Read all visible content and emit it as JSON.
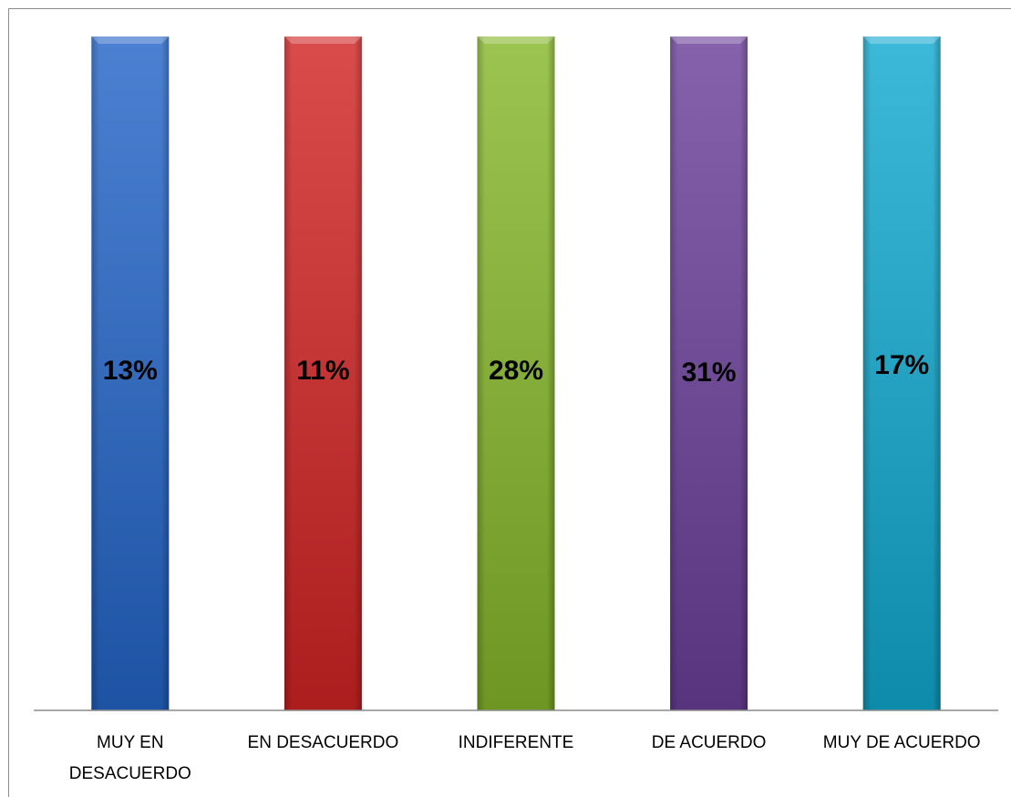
{
  "chart_data": {
    "type": "bar",
    "title": "",
    "xlabel": "",
    "ylabel": "",
    "categories": [
      "MUY EN DESACUERDO",
      "EN DESACUERDO",
      "INDIFERENTE",
      "DE ACUERDO",
      "MUY DE ACUERDO"
    ],
    "category_lines": [
      [
        "MUY EN",
        "DESACUERDO"
      ],
      [
        "EN DESACUERDO"
      ],
      [
        "INDIFERENTE"
      ],
      [
        "DE ACUERDO"
      ],
      [
        "MUY DE ACUERDO"
      ]
    ],
    "values": [
      13,
      11,
      28,
      31,
      17
    ],
    "value_labels": [
      "13%",
      "11%",
      "28%",
      "31%",
      "17%"
    ],
    "bar_heights_note": "all bars drawn to full height",
    "colors": [
      "#3a6fc0",
      "#c8393a",
      "#8ab23e",
      "#74509a",
      "#2aa6c6"
    ],
    "grid": false,
    "legend": "none"
  }
}
